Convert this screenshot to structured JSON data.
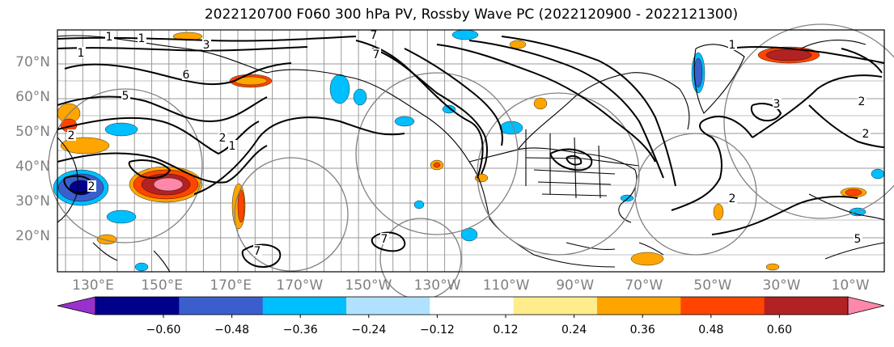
{
  "title": "2022120700 F060 300 hPa PV, Rossby Wave PC (2022120900 - 2022121300)",
  "lat_labels": [
    "70°N",
    "60°N",
    "50°N",
    "40°N",
    "30°N",
    "20°N"
  ],
  "lon_labels": [
    "130°E",
    "150°E",
    "170°E",
    "170°W",
    "150°W",
    "130°W",
    "110°W",
    "90°W",
    "70°W",
    "50°W",
    "30°W",
    "10°W"
  ],
  "colorbar": {
    "ticks": [
      "−0.60",
      "−0.48",
      "−0.36",
      "−0.24",
      "−0.12",
      "0.12",
      "0.24",
      "0.36",
      "0.48",
      "0.60"
    ],
    "colors": [
      "#9932cc",
      "#00008b",
      "#3a5fcd",
      "#00bfff",
      "#b0e2ff",
      "#ffffff",
      "#ffec8b",
      "#ffa500",
      "#ff4500",
      "#b22222",
      "#ff88aa"
    ]
  },
  "contour_labels": [
    "1",
    "1",
    "1",
    "7",
    "7",
    "3",
    "6",
    "5",
    "2",
    "2",
    "1",
    "7",
    "7",
    "1",
    "3",
    "2",
    "2",
    "2",
    "5",
    "2"
  ]
}
